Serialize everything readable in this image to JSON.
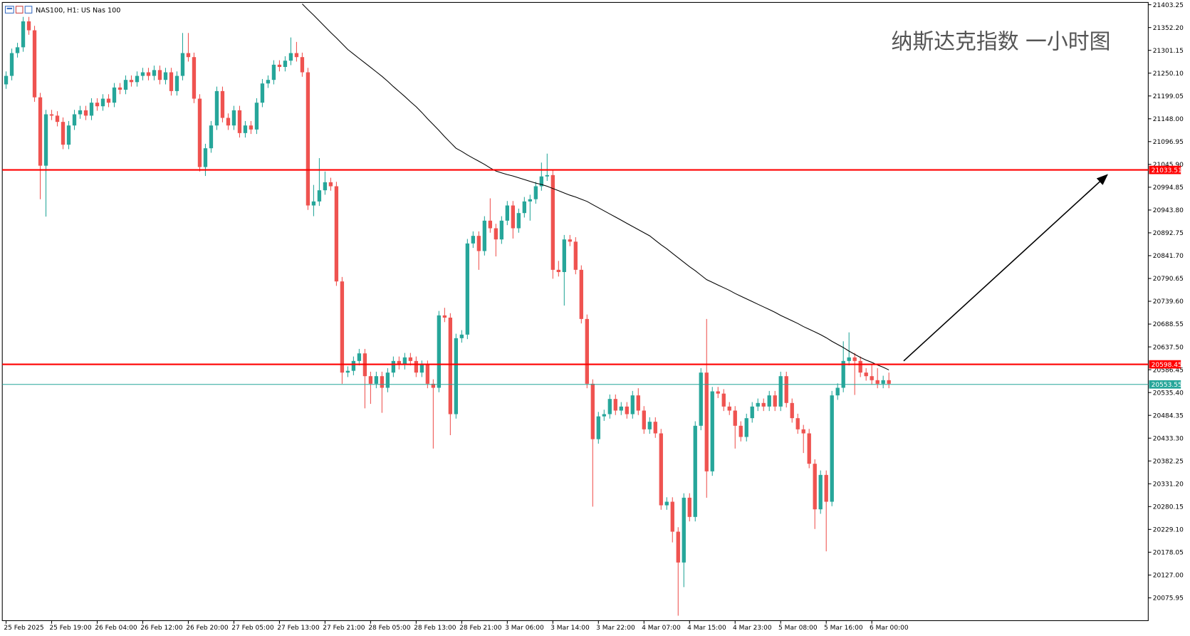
{
  "chart_data": {
    "type": "candlestick",
    "symbol_label": "NAS100, H1:  US Nas 100",
    "title": "纳斯达克指数 一小时图",
    "up_color": "#26a69a",
    "down_color": "#ef5350",
    "categories": [
      "25 Feb 2025",
      null,
      null,
      null,
      null,
      null,
      null,
      null,
      "25 Feb 19:00",
      null,
      null,
      null,
      null,
      null,
      null,
      null,
      "26 Feb 04:00",
      null,
      null,
      null,
      null,
      null,
      null,
      null,
      "26 Feb 12:00",
      null,
      null,
      null,
      null,
      null,
      null,
      null,
      "26 Feb 20:00",
      null,
      null,
      null,
      null,
      null,
      null,
      null,
      "27 Feb 05:00",
      null,
      null,
      null,
      null,
      null,
      null,
      null,
      "27 Feb 13:00",
      null,
      null,
      null,
      null,
      null,
      null,
      null,
      "27 Feb 21:00",
      null,
      null,
      null,
      null,
      null,
      null,
      null,
      "28 Feb 05:00",
      null,
      null,
      null,
      null,
      null,
      null,
      null,
      "28 Feb 13:00",
      null,
      null,
      null,
      null,
      null,
      null,
      null,
      "28 Feb 21:00",
      null,
      null,
      null,
      null,
      null,
      null,
      null,
      "3 Mar 06:00",
      null,
      null,
      null,
      null,
      null,
      null,
      null,
      "3 Mar 14:00",
      null,
      null,
      null,
      null,
      null,
      null,
      null,
      "3 Mar 22:00",
      null,
      null,
      null,
      null,
      null,
      null,
      null,
      "4 Mar 07:00",
      null,
      null,
      null,
      null,
      null,
      null,
      null,
      "4 Mar 15:00",
      null,
      null,
      null,
      null,
      null,
      null,
      null,
      "4 Mar 23:00",
      null,
      null,
      null,
      null,
      null,
      null,
      null,
      "5 Mar 08:00",
      null,
      null,
      null,
      null,
      null,
      null,
      null,
      "5 Mar 16:00",
      null,
      null,
      null,
      null,
      null,
      null,
      null,
      "6 Mar 00:00",
      null,
      null,
      null
    ],
    "open": [
      21225,
      21244,
      21295,
      21308,
      21366,
      21346,
      21196,
      21043,
      21158,
      21155,
      21141,
      21090,
      21133,
      21158,
      21167,
      21155,
      21184,
      21176,
      21193,
      21184,
      21218,
      21213,
      21235,
      21230,
      21244,
      21252,
      21244,
      21257,
      21235,
      21252,
      21210,
      21244,
      21295,
      21286,
      21193,
      21040,
      21082,
      21133,
      21210,
      21150,
      21133,
      21167,
      21116,
      21133,
      21124,
      21184,
      21227,
      21235,
      21269,
      21264,
      21278,
      21295,
      21286,
      21252,
      20954,
      20963,
      20988,
      21006,
      20997,
      20784,
      20580,
      20584,
      20606,
      20623,
      20572,
      20555,
      20572,
      20546,
      20580,
      20606,
      20597,
      20614,
      20606,
      20580,
      20597,
      20555,
      20546,
      20708,
      20703,
      20487,
      20657,
      20665,
      20869,
      20886,
      20852,
      20920,
      20903,
      20878,
      20920,
      20954,
      20903,
      20937,
      20963,
      20968,
      20997,
      21019,
      21022,
      20810,
      20805,
      20878,
      20873,
      20810,
      20700,
      20555,
      20431,
      20482,
      20487,
      20521,
      20495,
      20504,
      20487,
      20529,
      20495,
      20453,
      20470,
      20444,
      20283,
      20291,
      20224,
      20155,
      20300,
      20257,
      20461,
      20580,
      20359,
      20538,
      20533,
      20504,
      20495,
      20461,
      20436,
      20478,
      20504,
      20512,
      20504,
      20529,
      20504,
      20572,
      20512,
      20478,
      20453,
      20444,
      20376,
      20274,
      20351,
      20291,
      20529,
      20546,
      20606,
      20614,
      20606,
      20580,
      20572,
      20563,
      20555,
      20563
    ],
    "high": [
      21254,
      21305,
      21318,
      21376,
      21376,
      21356,
      21206,
      21168,
      21168,
      21165,
      21151,
      21143,
      21168,
      21177,
      21177,
      21194,
      21194,
      21203,
      21203,
      21228,
      21228,
      21245,
      21245,
      21254,
      21262,
      21262,
      21267,
      21267,
      21262,
      21262,
      21254,
      21340,
      21340,
      21296,
      21203,
      21092,
      21143,
      21220,
      21220,
      21160,
      21177,
      21177,
      21143,
      21143,
      21194,
      21237,
      21245,
      21279,
      21279,
      21288,
      21330,
      21320,
      21296,
      21262,
      21000,
      21060,
      21030,
      21016,
      21007,
      20794,
      20594,
      20616,
      20633,
      20633,
      20582,
      20582,
      20582,
      20590,
      20616,
      20616,
      20624,
      20624,
      20616,
      20607,
      20607,
      20565,
      20718,
      20725,
      20713,
      20667,
      20675,
      20879,
      20896,
      20896,
      20930,
      20970,
      20913,
      20930,
      20964,
      20964,
      20947,
      20973,
      20978,
      21007,
      21050,
      21070,
      21032,
      20830,
      20888,
      20888,
      20883,
      20820,
      20710,
      20565,
      20492,
      20497,
      20531,
      20531,
      20514,
      20514,
      20539,
      20545,
      20505,
      20480,
      20480,
      20454,
      20301,
      20301,
      20234,
      20310,
      20310,
      20471,
      20590,
      20700,
      20548,
      20548,
      20543,
      20514,
      20505,
      20471,
      20488,
      20514,
      20522,
      20522,
      20539,
      20539,
      20582,
      20582,
      20522,
      20488,
      20463,
      20454,
      20386,
      20361,
      20361,
      20539,
      20556,
      20650,
      20670,
      20624,
      20616,
      20590,
      20600,
      20590,
      20573,
      20580
    ],
    "low": [
      21215,
      21234,
      21285,
      21298,
      21336,
      21186,
      20968,
      20929,
      21145,
      21131,
      21080,
      21080,
      21123,
      21148,
      21145,
      21145,
      21166,
      21166,
      21174,
      21174,
      21203,
      21203,
      21220,
      21220,
      21234,
      21234,
      21234,
      21225,
      21225,
      21200,
      21200,
      21234,
      21276,
      21183,
      21030,
      21020,
      21072,
      21123,
      21140,
      21123,
      21123,
      21106,
      21106,
      21114,
      21114,
      21174,
      21217,
      21225,
      21254,
      21254,
      21268,
      21276,
      21242,
      20944,
      20930,
      20953,
      20978,
      20987,
      20774,
      20555,
      20570,
      20574,
      20596,
      20500,
      20510,
      20545,
      20490,
      20536,
      20570,
      20587,
      20587,
      20596,
      20570,
      20570,
      20545,
      20410,
      20536,
      20693,
      20440,
      20477,
      20647,
      20655,
      20859,
      20810,
      20842,
      20893,
      20840,
      20868,
      20910,
      20880,
      20893,
      20927,
      20920,
      20958,
      20987,
      21009,
      20790,
      20795,
      20730,
      20863,
      20800,
      20690,
      20545,
      20280,
      20421,
      20472,
      20477,
      20485,
      20485,
      20477,
      20477,
      20485,
      20443,
      20443,
      20434,
      20273,
      20273,
      20200,
      20036,
      20100,
      20247,
      20247,
      20451,
      20300,
      20349,
      20523,
      20494,
      20485,
      20410,
      20426,
      20426,
      20468,
      20494,
      20494,
      20494,
      20494,
      20494,
      20502,
      20468,
      20443,
      20400,
      20366,
      20230,
      20264,
      20180,
      20281,
      20519,
      20536,
      20596,
      20530,
      20570,
      20562,
      20553,
      20545,
      20545,
      20545
    ],
    "close": [
      21244,
      21295,
      21308,
      21366,
      21346,
      21196,
      21043,
      21158,
      21155,
      21141,
      21090,
      21133,
      21158,
      21167,
      21155,
      21184,
      21176,
      21193,
      21184,
      21218,
      21213,
      21235,
      21230,
      21244,
      21252,
      21244,
      21257,
      21235,
      21252,
      21210,
      21244,
      21295,
      21286,
      21193,
      21040,
      21082,
      21133,
      21210,
      21150,
      21133,
      21167,
      21116,
      21133,
      21124,
      21184,
      21227,
      21235,
      21269,
      21264,
      21278,
      21295,
      21286,
      21252,
      20954,
      20963,
      20988,
      21006,
      20997,
      20784,
      20580,
      20584,
      20606,
      20623,
      20572,
      20555,
      20572,
      20546,
      20580,
      20606,
      20597,
      20614,
      20606,
      20580,
      20597,
      20555,
      20546,
      20708,
      20703,
      20487,
      20657,
      20665,
      20869,
      20886,
      20852,
      20920,
      20903,
      20878,
      20920,
      20954,
      20903,
      20937,
      20963,
      20968,
      20997,
      21019,
      21022,
      20810,
      20805,
      20878,
      20873,
      20810,
      20700,
      20555,
      20431,
      20482,
      20487,
      20521,
      20495,
      20504,
      20487,
      20529,
      20495,
      20453,
      20470,
      20444,
      20283,
      20291,
      20224,
      20155,
      20300,
      20257,
      20461,
      20580,
      20359,
      20538,
      20533,
      20504,
      20495,
      20461,
      20436,
      20478,
      20504,
      20512,
      20504,
      20529,
      20504,
      20572,
      20512,
      20478,
      20453,
      20444,
      20376,
      20274,
      20351,
      20291,
      20529,
      20546,
      20606,
      20614,
      20606,
      20580,
      20572,
      20563,
      20555,
      20563,
      20555
    ],
    "ma": {
      "color": "#000000",
      "values": [
        null,
        null,
        null,
        null,
        null,
        null,
        null,
        null,
        null,
        null,
        null,
        null,
        null,
        null,
        null,
        null,
        null,
        null,
        null,
        null,
        null,
        null,
        null,
        null,
        null,
        null,
        null,
        null,
        null,
        null,
        null,
        null,
        null,
        null,
        null,
        null,
        null,
        null,
        null,
        null,
        null,
        null,
        null,
        null,
        null,
        null,
        null,
        null,
        null,
        null,
        null,
        null,
        21405,
        21392,
        21380,
        21367,
        21354,
        21341,
        21329,
        21316,
        21303,
        21293,
        21283,
        21273,
        21263,
        21253,
        21243,
        21232,
        21220,
        21209,
        21198,
        21186,
        21175,
        21162,
        21148,
        21135,
        21122,
        21108,
        21095,
        21082,
        21075,
        21067,
        21060,
        21053,
        21046,
        21038,
        21031,
        21027,
        21023,
        21020,
        21016,
        21012,
        21008,
        21004,
        21001,
        20997,
        20992,
        20987,
        20982,
        20977,
        20973,
        20968,
        20963,
        20956,
        20949,
        20942,
        20935,
        20928,
        20921,
        20914,
        20907,
        20900,
        20893,
        20886,
        20876,
        20866,
        20857,
        20847,
        20837,
        20827,
        20817,
        20808,
        20798,
        20788,
        20782,
        20776,
        20770,
        20764,
        20757,
        20751,
        20745,
        20739,
        20733,
        20727,
        20721,
        20715,
        20708,
        20702,
        20696,
        20690,
        20683,
        20677,
        20671,
        20665,
        20658,
        20650,
        20643,
        20636,
        20628,
        20621,
        20614,
        20608,
        20603,
        20597,
        20592,
        20586
      ]
    },
    "hlines": [
      {
        "value": 21033.51,
        "color": "#ff0000"
      },
      {
        "value": 20598.45,
        "color": "#ff0000"
      },
      {
        "value": 20553.55,
        "color": "#26a69a"
      }
    ],
    "ylim": [
      20024.9,
      21408.35
    ],
    "yticks": [
      21403.25,
      {
        "value": 21352.2,
        "label": "21352.20"
      },
      21301.15,
      {
        "value": 21250.1,
        "label": "21250.10"
      },
      21199.05,
      {
        "value": 21148,
        "label": "21148.00"
      },
      21096.95,
      {
        "value": 21045.9,
        "label": "21045.90"
      },
      20994.85,
      {
        "value": 20943.8,
        "label": "20943.80"
      },
      20892.75,
      {
        "value": 20841.7,
        "label": "20841.70"
      },
      20790.65,
      {
        "value": 20739.6,
        "label": "20739.60"
      },
      20688.55,
      {
        "value": 20637.5,
        "label": "20637.50"
      },
      20586.45,
      {
        "value": 20535.4,
        "label": "20535.40"
      },
      20484.35,
      {
        "value": 20433.3,
        "label": "20433.30"
      },
      20382.25,
      {
        "value": 20331.2,
        "label": "20331.20"
      },
      20280.15,
      {
        "value": 20229.1,
        "label": "20229.10"
      },
      20178.05,
      {
        "value": 20127,
        "label": "20127.00"
      },
      20075.95
    ]
  }
}
